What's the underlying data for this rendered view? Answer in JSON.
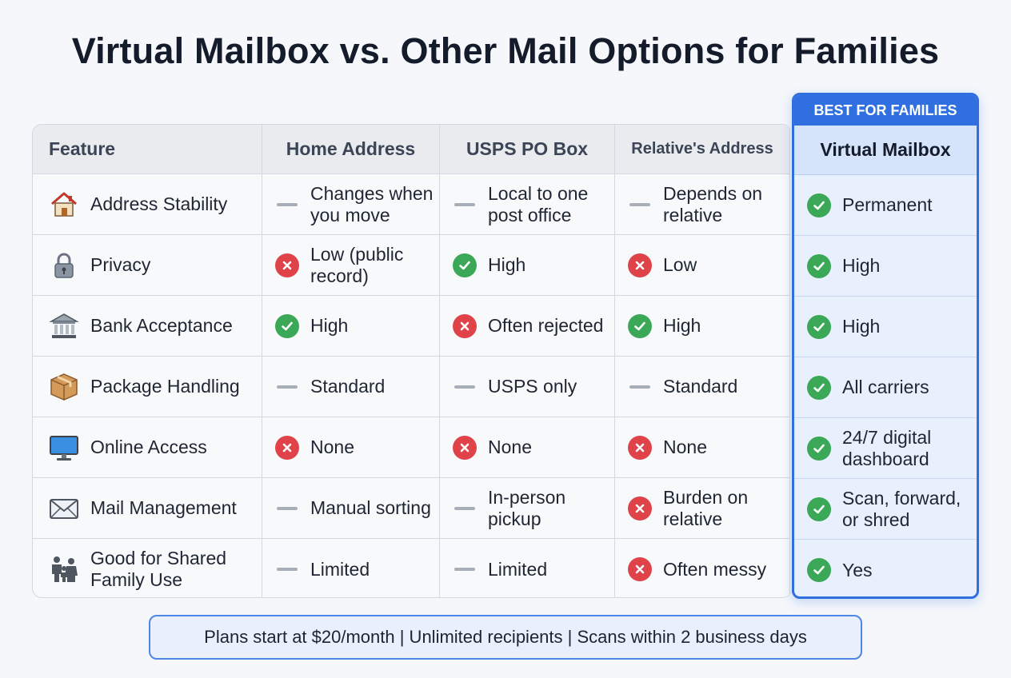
{
  "title": "Virtual Mailbox vs. Other Mail Options for Families",
  "badge": "BEST FOR FAMILIES",
  "columns": [
    "Feature",
    "Home Address",
    "USPS PO Box",
    "Relative's Address",
    "Virtual Mailbox"
  ],
  "rows": [
    {
      "feature": "Address Stability",
      "icon": "house-icon",
      "cells": [
        {
          "status": "neutral",
          "text": "Changes when you move"
        },
        {
          "status": "neutral",
          "text": "Local to one post office"
        },
        {
          "status": "neutral",
          "text": "Depends on relative"
        },
        {
          "status": "good",
          "text": "Permanent"
        }
      ]
    },
    {
      "feature": "Privacy",
      "icon": "lock-icon",
      "cells": [
        {
          "status": "bad",
          "text": "Low (public record)"
        },
        {
          "status": "good",
          "text": "High"
        },
        {
          "status": "bad",
          "text": "Low"
        },
        {
          "status": "good",
          "text": "High"
        }
      ]
    },
    {
      "feature": "Bank Acceptance",
      "icon": "bank-icon",
      "cells": [
        {
          "status": "good",
          "text": "High"
        },
        {
          "status": "bad",
          "text": "Often rejected"
        },
        {
          "status": "good",
          "text": "High"
        },
        {
          "status": "good",
          "text": "High"
        }
      ]
    },
    {
      "feature": "Package Handling",
      "icon": "package-icon",
      "cells": [
        {
          "status": "neutral",
          "text": "Standard"
        },
        {
          "status": "neutral",
          "text": "USPS only"
        },
        {
          "status": "neutral",
          "text": "Standard"
        },
        {
          "status": "good",
          "text": "All carriers"
        }
      ]
    },
    {
      "feature": "Online Access",
      "icon": "monitor-icon",
      "cells": [
        {
          "status": "bad",
          "text": "None"
        },
        {
          "status": "bad",
          "text": "None"
        },
        {
          "status": "bad",
          "text": "None"
        },
        {
          "status": "good",
          "text": "24/7 digital dashboard"
        }
      ]
    },
    {
      "feature": "Mail Management",
      "icon": "envelope-icon",
      "cells": [
        {
          "status": "neutral",
          "text": "Manual sorting"
        },
        {
          "status": "neutral",
          "text": "In-person pickup"
        },
        {
          "status": "bad",
          "text": "Burden on relative"
        },
        {
          "status": "good",
          "text": "Scan, forward, or shred"
        }
      ]
    },
    {
      "feature": "Good for Shared Family Use",
      "icon": "family-icon",
      "cells": [
        {
          "status": "neutral",
          "text": "Limited"
        },
        {
          "status": "neutral",
          "text": "Limited"
        },
        {
          "status": "bad",
          "text": "Often messy"
        },
        {
          "status": "good",
          "text": "Yes"
        }
      ]
    }
  ],
  "footer": "Plans start at $20/month | Unlimited recipients | Scans within 2 business days",
  "colors": {
    "accent": "#2f6fe0",
    "good": "#3aa856",
    "bad": "#e0424a",
    "neutral": "#a8aeb8"
  }
}
